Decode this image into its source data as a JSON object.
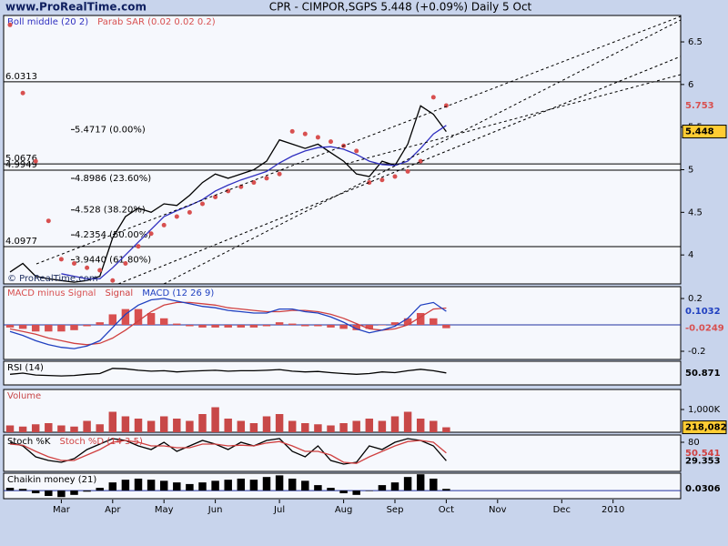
{
  "chart_data": {
    "type": "financial",
    "site": "www.ProRealTime.com",
    "title": "CPR - CIMPOR,SGPS   5.448 (+0.09%)   Daily  5 Oct",
    "watermark": "© ProRealTime.com",
    "categories": [
      null,
      null,
      null,
      null,
      "Mar",
      null,
      null,
      null,
      "Apr",
      null,
      null,
      null,
      "May",
      null,
      null,
      null,
      "Jun",
      null,
      null,
      null,
      null,
      "Jul",
      null,
      null,
      null,
      null,
      "Aug",
      null,
      null,
      null,
      "Sep",
      null,
      null,
      null,
      "Oct",
      null,
      null,
      null,
      "Nov",
      null,
      null,
      null,
      null,
      "Dec",
      null,
      null,
      null,
      "2010",
      null,
      null,
      null,
      null,
      null
    ],
    "panels": [
      {
        "type": "line",
        "ylim": [
          3.66,
          6.81
        ],
        "yticks": [
          4,
          4.5,
          5,
          5.5,
          6,
          6.5
        ],
        "hlines": [
          {
            "value": 6.0313,
            "label": "6.0313"
          },
          {
            "value": 5.0676,
            "label": "5.0676"
          },
          {
            "value": 4.9949,
            "label": "4.9949"
          },
          {
            "value": 4.0977,
            "label": "4.0977"
          }
        ],
        "fib_levels": [
          {
            "value": 5.4717,
            "label": "5.4717 (0.00%)"
          },
          {
            "value": 4.8986,
            "label": "4.8986 (23.60%)"
          },
          {
            "value": 4.528,
            "label": "4.528 (38.20%)"
          },
          {
            "value": 4.2354,
            "label": "4.2354 (50.00%)"
          },
          {
            "value": 3.944,
            "label": "3.9440 (61.80%)"
          }
        ],
        "series": [
          {
            "type": "line",
            "color": "#000000",
            "show_last": true,
            "last_box": "#ffcc33",
            "values": [
              3.8,
              3.9,
              3.75,
              3.72,
              3.7,
              3.68,
              3.7,
              3.75,
              4.2,
              4.45,
              4.55,
              4.5,
              4.6,
              4.58,
              4.7,
              4.85,
              4.95,
              4.9,
              4.95,
              5.0,
              5.1,
              5.35,
              5.3,
              5.25,
              5.3,
              5.2,
              5.1,
              4.95,
              4.92,
              5.1,
              5.05,
              5.3,
              5.75,
              5.65,
              5.448,
              null,
              null,
              null,
              null,
              null,
              null,
              null,
              null,
              null,
              null,
              null,
              null,
              null,
              null,
              null,
              null,
              null,
              null
            ]
          },
          {
            "type": "line",
            "name": "Boll middle (20 2)",
            "color": "#3030c0",
            "values": [
              null,
              null,
              null,
              null,
              3.78,
              3.75,
              3.72,
              3.72,
              3.85,
              4.0,
              4.15,
              4.3,
              4.45,
              4.52,
              4.58,
              4.65,
              4.75,
              4.82,
              4.88,
              4.93,
              4.98,
              5.08,
              5.16,
              5.22,
              5.26,
              5.27,
              5.24,
              5.18,
              5.1,
              5.06,
              5.05,
              5.1,
              5.25,
              5.42,
              5.52,
              null,
              null,
              null,
              null,
              null,
              null,
              null,
              null,
              null,
              null,
              null,
              null,
              null,
              null,
              null,
              null,
              null,
              null
            ]
          },
          {
            "type": "dots",
            "name": "Parab SAR (0.02 0.02 0.2)",
            "color": "#d85050",
            "show_last": true,
            "values": [
              6.7,
              5.9,
              5.1,
              4.4,
              3.95,
              3.9,
              3.85,
              3.82,
              3.7,
              3.9,
              4.1,
              4.25,
              4.35,
              4.45,
              4.5,
              4.6,
              4.68,
              4.75,
              4.8,
              4.85,
              4.9,
              4.95,
              5.45,
              5.42,
              5.38,
              5.33,
              5.28,
              5.22,
              4.85,
              4.88,
              4.92,
              4.98,
              5.1,
              5.85,
              5.753,
              null,
              null,
              null,
              null,
              null,
              null,
              null,
              null,
              null,
              null,
              null,
              null,
              null,
              null,
              null,
              null,
              null,
              null
            ]
          }
        ]
      },
      {
        "type": "line",
        "ylim": [
          -0.262,
          0.29
        ],
        "yticks": [
          0.2,
          -0.2
        ],
        "zero_line": true,
        "series": [
          {
            "type": "bar",
            "name": "MACD minus Signal",
            "color": "#d85050",
            "show_last": true,
            "values": [
              -0.02,
              -0.03,
              -0.05,
              -0.05,
              -0.05,
              -0.04,
              -0.01,
              0.02,
              0.08,
              0.12,
              0.12,
              0.09,
              0.05,
              0.01,
              -0.01,
              -0.02,
              -0.02,
              -0.02,
              -0.02,
              -0.02,
              -0.01,
              0.02,
              0.01,
              -0.01,
              -0.01,
              -0.02,
              -0.03,
              -0.04,
              -0.03,
              0,
              0.02,
              0.05,
              0.09,
              0.05,
              -0.0249,
              null,
              null,
              null,
              null,
              null,
              null,
              null,
              null,
              null,
              null,
              null,
              null,
              null,
              null,
              null,
              null,
              null,
              null
            ]
          },
          {
            "type": "line",
            "name": "Signal",
            "color": "#d04040",
            "values": [
              -0.03,
              -0.05,
              -0.07,
              -0.1,
              -0.12,
              -0.14,
              -0.15,
              -0.14,
              -0.1,
              -0.04,
              0.03,
              0.1,
              0.15,
              0.17,
              0.17,
              0.16,
              0.15,
              0.13,
              0.12,
              0.11,
              0.1,
              0.1,
              0.11,
              0.11,
              0.1,
              0.08,
              0.05,
              0.01,
              -0.03,
              -0.04,
              -0.03,
              0.0,
              0.06,
              0.12,
              0.1281,
              null,
              null,
              null,
              null,
              null,
              null,
              null,
              null,
              null,
              null,
              null,
              null,
              null,
              null,
              null,
              null,
              null,
              null
            ]
          },
          {
            "type": "line",
            "name": "MACD (12 26 9)",
            "color": "#2040c0",
            "show_last": true,
            "values": [
              -0.05,
              -0.08,
              -0.12,
              -0.15,
              -0.17,
              -0.18,
              -0.16,
              -0.12,
              -0.02,
              0.08,
              0.15,
              0.19,
              0.2,
              0.18,
              0.16,
              0.14,
              0.13,
              0.11,
              0.1,
              0.09,
              0.09,
              0.12,
              0.12,
              0.1,
              0.09,
              0.06,
              0.02,
              -0.03,
              -0.06,
              -0.04,
              -0.01,
              0.05,
              0.15,
              0.17,
              0.1032,
              null,
              null,
              null,
              null,
              null,
              null,
              null,
              null,
              null,
              null,
              null,
              null,
              null,
              null,
              null,
              null,
              null,
              null
            ]
          }
        ]
      },
      {
        "type": "line",
        "ylim": [
          0,
          100
        ],
        "yticks": [],
        "series": [
          {
            "type": "line",
            "name": "RSI (14)",
            "color": "#000000",
            "show_last": true,
            "values": [
              45,
              50,
              42,
              40,
              38,
              40,
              45,
              48,
              70,
              68,
              62,
              58,
              60,
              55,
              58,
              60,
              62,
              58,
              60,
              60,
              62,
              65,
              58,
              55,
              57,
              52,
              48,
              45,
              48,
              55,
              52,
              60,
              66,
              60,
              50.871,
              null,
              null,
              null,
              null,
              null,
              null,
              null,
              null,
              null,
              null,
              null,
              null,
              null,
              null,
              null,
              null,
              null,
              null
            ]
          }
        ]
      },
      {
        "type": "bar",
        "ylim": [
          0,
          1880000
        ],
        "yticks": [
          {
            "value": 1000000,
            "label": "1,000K"
          }
        ],
        "series": [
          {
            "type": "bar",
            "name": "Volume",
            "color": "#c84848",
            "show_last": true,
            "last_box": "#ffcc33",
            "values": [
              300000,
              250000,
              350000,
              400000,
              300000,
              250000,
              500000,
              350000,
              900000,
              700000,
              600000,
              500000,
              700000,
              600000,
              500000,
              800000,
              1100000,
              600000,
              500000,
              400000,
              700000,
              800000,
              500000,
              400000,
              350000,
              300000,
              400000,
              500000,
              600000,
              500000,
              700000,
              900000,
              600000,
              500000,
              218082,
              null,
              null,
              null,
              null,
              null,
              null,
              null,
              null,
              null,
              null,
              null,
              null,
              null,
              null,
              null,
              null,
              null,
              null
            ],
            "value_labels": [
              null,
              null,
              null,
              null,
              null,
              null,
              null,
              null,
              null,
              null,
              null,
              null,
              null,
              null,
              null,
              null,
              null,
              null,
              null,
              null,
              null,
              null,
              null,
              null,
              null,
              null,
              null,
              null,
              null,
              null,
              null,
              null,
              null,
              null,
              "218,082",
              null,
              null,
              null,
              null,
              null,
              null,
              null,
              null,
              null,
              null,
              null,
              null,
              null,
              null,
              null,
              null,
              null,
              null
            ]
          }
        ]
      },
      {
        "type": "line",
        "ylim": [
          0,
          100
        ],
        "yticks": [
          80
        ],
        "series": [
          {
            "type": "line",
            "name": "Stoch %K",
            "color": "#000000",
            "show_last": true,
            "values": [
              80,
              70,
              40,
              30,
              25,
              35,
              60,
              75,
              90,
              85,
              70,
              60,
              80,
              55,
              70,
              85,
              75,
              60,
              80,
              70,
              85,
              90,
              55,
              40,
              70,
              30,
              20,
              25,
              70,
              60,
              80,
              90,
              85,
              70,
              29.353,
              null,
              null,
              null,
              null,
              null,
              null,
              null,
              null,
              null,
              null,
              null,
              null,
              null,
              null,
              null,
              null,
              null,
              null
            ]
          },
          {
            "type": "line",
            "name": "Stoch %D (14 3 5)",
            "color": "#d04040",
            "show_last": true,
            "values": [
              75,
              72,
              55,
              40,
              30,
              30,
              45,
              60,
              80,
              85,
              80,
              70,
              70,
              65,
              65,
              75,
              75,
              70,
              72,
              70,
              78,
              82,
              70,
              55,
              55,
              45,
              25,
              22,
              40,
              55,
              70,
              82,
              85,
              80,
              50.541,
              null,
              null,
              null,
              null,
              null,
              null,
              null,
              null,
              null,
              null,
              null,
              null,
              null,
              null,
              null,
              null,
              null,
              null
            ]
          }
        ]
      },
      {
        "type": "bar",
        "ylim": [
          -0.15,
          0.32
        ],
        "yticks": [],
        "zero_line": true,
        "series": [
          {
            "type": "bar",
            "name": "Chaikin money (21)",
            "color": "#000000",
            "show_last": true,
            "values": [
              0.05,
              0.03,
              -0.05,
              -0.1,
              -0.12,
              -0.08,
              -0.02,
              0.05,
              0.15,
              0.2,
              0.22,
              0.2,
              0.18,
              0.15,
              0.12,
              0.15,
              0.18,
              0.2,
              0.22,
              0.2,
              0.25,
              0.28,
              0.22,
              0.18,
              0.1,
              0.05,
              -0.05,
              -0.08,
              0.0,
              0.1,
              0.15,
              0.25,
              0.3,
              0.22,
              0.0306,
              null,
              null,
              null,
              null,
              null,
              null,
              null,
              null,
              null,
              null,
              null,
              null,
              null,
              null,
              null,
              null,
              null,
              null
            ]
          }
        ]
      }
    ]
  }
}
